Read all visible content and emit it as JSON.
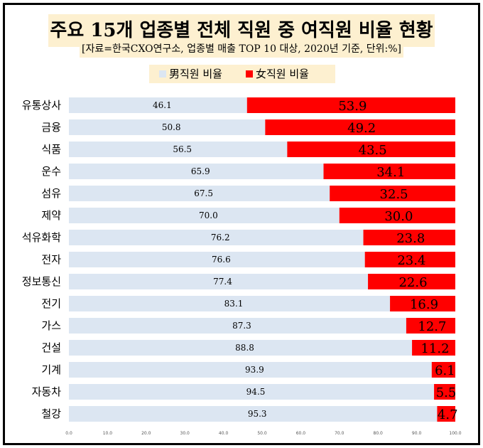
{
  "title": "주요 15개 업종별 전체 직원 중 여직원 비율 현황",
  "subtitle": "[자료=한국CXO연구소, 업종별 매출 TOP 10 대상, 2020년 기준, 단위:%]",
  "legend": {
    "male": "男직원 비율",
    "female": "女직원 비율"
  },
  "colors": {
    "male": "#dce6f2",
    "female": "#ff0000",
    "title_bg": "#fdf0d0"
  },
  "chart_data": {
    "type": "bar",
    "orientation": "horizontal",
    "stacked": true,
    "categories": [
      "유통상사",
      "금융",
      "식품",
      "운수",
      "섬유",
      "제약",
      "석유화학",
      "전자",
      "정보통신",
      "전기",
      "가스",
      "건설",
      "기계",
      "자동차",
      "철강"
    ],
    "series": [
      {
        "name": "男직원 비율",
        "values": [
          46.1,
          50.8,
          56.5,
          65.9,
          67.5,
          70.0,
          76.2,
          76.6,
          77.4,
          83.1,
          87.3,
          88.8,
          93.9,
          94.5,
          95.3
        ]
      },
      {
        "name": "女직원 비율",
        "values": [
          53.9,
          49.2,
          43.5,
          34.1,
          32.5,
          30.0,
          23.8,
          23.4,
          22.6,
          16.9,
          12.7,
          11.2,
          6.1,
          5.5,
          4.7
        ]
      }
    ],
    "xlim": [
      0,
      100
    ],
    "xticks": [
      "0.0",
      "10.0",
      "20.0",
      "30.0",
      "40.0",
      "50.0",
      "60.0",
      "70.0",
      "80.0",
      "90.0",
      "100.0"
    ],
    "legend_position": "top"
  }
}
